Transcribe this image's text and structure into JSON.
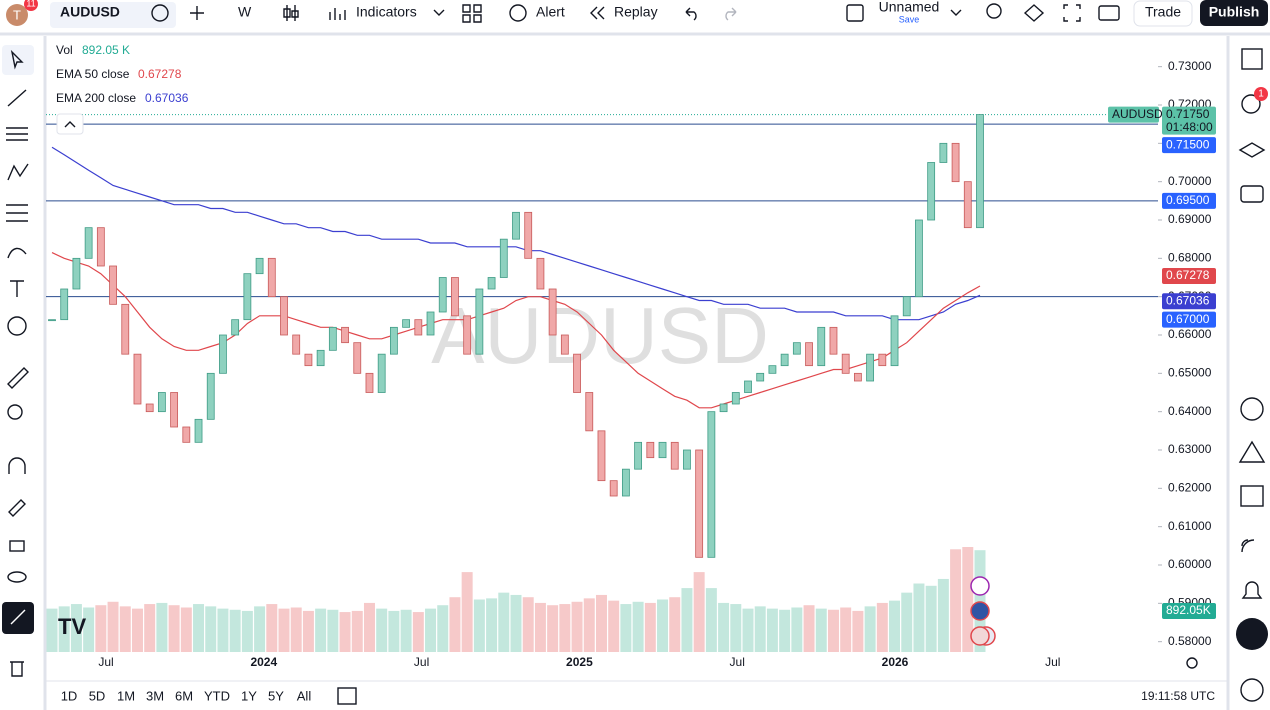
{
  "toolbar": {
    "badge": "11",
    "symbol": "AUDUSD",
    "interval": "W",
    "indicators": "Indicators",
    "alert": "Alert",
    "replay": "Replay",
    "layout_name": "Unnamed",
    "layout_save": "Save",
    "trade": "Trade",
    "publish": "Publish"
  },
  "legend": {
    "vol_label": "Vol",
    "vol_value": "892.05 K",
    "ema50_label": "EMA 50 close",
    "ema50_value": "0.67278",
    "ema200_label": "EMA 200 close",
    "ema200_value": "0.67036"
  },
  "watermark": "AUDUSD",
  "chart": {
    "type": "candlestick",
    "closes": [
      0.664,
      0.672,
      0.68,
      0.688,
      0.678,
      0.668,
      0.655,
      0.642,
      0.64,
      0.645,
      0.636,
      0.632,
      0.638,
      0.65,
      0.66,
      0.664,
      0.676,
      0.68,
      0.67,
      0.66,
      0.655,
      0.652,
      0.656,
      0.662,
      0.658,
      0.65,
      0.645,
      0.655,
      0.662,
      0.664,
      0.66,
      0.666,
      0.675,
      0.665,
      0.655,
      0.672,
      0.675,
      0.685,
      0.692,
      0.68,
      0.672,
      0.66,
      0.655,
      0.645,
      0.635,
      0.622,
      0.618,
      0.625,
      0.632,
      0.628,
      0.632,
      0.625,
      0.63,
      0.602,
      0.64,
      0.642,
      0.645,
      0.648,
      0.65,
      0.652,
      0.655,
      0.658,
      0.652,
      0.662,
      0.655,
      0.65,
      0.648,
      0.655,
      0.652,
      0.665,
      0.67,
      0.69,
      0.705,
      0.71,
      0.7,
      0.688,
      0.7175
    ],
    "volumes": [
      380,
      400,
      420,
      390,
      410,
      440,
      400,
      380,
      420,
      430,
      410,
      390,
      420,
      400,
      380,
      370,
      360,
      400,
      420,
      380,
      390,
      360,
      380,
      370,
      350,
      360,
      430,
      380,
      360,
      370,
      350,
      380,
      410,
      480,
      700,
      460,
      470,
      520,
      500,
      480,
      430,
      410,
      420,
      440,
      470,
      500,
      450,
      420,
      440,
      430,
      460,
      480,
      560,
      700,
      560,
      430,
      420,
      380,
      400,
      380,
      370,
      390,
      410,
      380,
      370,
      390,
      360,
      400,
      430,
      450,
      520,
      600,
      580,
      640,
      900,
      920,
      892.05
    ],
    "ema50": [
      0.6815,
      0.68,
      0.679,
      0.678,
      0.676,
      0.673,
      0.67,
      0.666,
      0.662,
      0.659,
      0.657,
      0.656,
      0.656,
      0.657,
      0.658,
      0.66,
      0.663,
      0.665,
      0.665,
      0.665,
      0.664,
      0.663,
      0.662,
      0.662,
      0.661,
      0.66,
      0.659,
      0.659,
      0.66,
      0.661,
      0.662,
      0.663,
      0.664,
      0.664,
      0.664,
      0.665,
      0.666,
      0.667,
      0.669,
      0.67,
      0.67,
      0.669,
      0.668,
      0.666,
      0.663,
      0.66,
      0.656,
      0.653,
      0.65,
      0.648,
      0.646,
      0.644,
      0.643,
      0.641,
      0.641,
      0.642,
      0.643,
      0.644,
      0.645,
      0.646,
      0.647,
      0.648,
      0.649,
      0.65,
      0.651,
      0.651,
      0.652,
      0.653,
      0.654,
      0.656,
      0.658,
      0.661,
      0.664,
      0.667,
      0.669,
      0.671,
      0.67278
    ],
    "ema200": [
      0.709,
      0.707,
      0.705,
      0.703,
      0.701,
      0.699,
      0.698,
      0.697,
      0.696,
      0.695,
      0.694,
      0.694,
      0.694,
      0.693,
      0.693,
      0.692,
      0.692,
      0.691,
      0.69,
      0.689,
      0.689,
      0.688,
      0.688,
      0.687,
      0.687,
      0.686,
      0.686,
      0.685,
      0.685,
      0.685,
      0.685,
      0.684,
      0.684,
      0.684,
      0.683,
      0.683,
      0.683,
      0.683,
      0.683,
      0.682,
      0.682,
      0.681,
      0.68,
      0.679,
      0.678,
      0.677,
      0.676,
      0.675,
      0.674,
      0.673,
      0.672,
      0.671,
      0.67,
      0.669,
      0.669,
      0.668,
      0.668,
      0.668,
      0.667,
      0.667,
      0.667,
      0.666,
      0.666,
      0.666,
      0.666,
      0.665,
      0.665,
      0.665,
      0.665,
      0.664,
      0.664,
      0.664,
      0.665,
      0.666,
      0.668,
      0.669,
      0.67036
    ],
    "volume_label": {
      "value": 892.05,
      "label": "892.05K"
    },
    "ylim": [
      0.57,
      0.738
    ],
    "yticks": [
      {
        "value": 0.73,
        "label": "0.73000"
      },
      {
        "value": 0.72,
        "label": "0.72000"
      },
      {
        "value": 0.71,
        "label": "0.71000"
      },
      {
        "value": 0.7,
        "label": "0.70000"
      },
      {
        "value": 0.69,
        "label": "0.69000"
      },
      {
        "value": 0.68,
        "label": "0.68000"
      },
      {
        "value": 0.67,
        "label": "0.67000"
      },
      {
        "value": 0.66,
        "label": "0.66000"
      },
      {
        "value": 0.65,
        "label": "0.65000"
      },
      {
        "value": 0.64,
        "label": "0.64000"
      },
      {
        "value": 0.63,
        "label": "0.63000"
      },
      {
        "value": 0.62,
        "label": "0.62000"
      },
      {
        "value": 0.61,
        "label": "0.61000"
      },
      {
        "value": 0.6,
        "label": "0.60000"
      },
      {
        "value": 0.59,
        "label": "0.59000"
      },
      {
        "value": 0.58,
        "label": "0.58000"
      }
    ],
    "price_lines": [
      {
        "value": 0.715,
        "label": "0.71500"
      },
      {
        "value": 0.695,
        "label": "0.69500"
      },
      {
        "value": 0.67,
        "label": "0.67000"
      }
    ],
    "last_price": {
      "symbol": "AUDUSD",
      "value": 0.7175,
      "label": "0.71750",
      "countdown": "01:48:00"
    },
    "ema50_tag": {
      "value": 0.67278,
      "label": "0.67278"
    },
    "ema200_tag": {
      "value": 0.67036,
      "label": "0.67036"
    },
    "xlabels": [
      "Jul",
      "2024",
      "Jul",
      "2025",
      "Jul",
      "2026",
      "Jul"
    ],
    "colors": {
      "up": "#8ed1bf",
      "up_edge": "#3f9c86",
      "down": "#f0a8a8",
      "down_edge": "#c85a5a",
      "vol_up": "#c3e7dd",
      "vol_down": "#f6c9c9",
      "ema50": "#e0474c",
      "ema200": "#3b3fd0",
      "line": "#2a4c8f"
    }
  },
  "timeframes": [
    "1D",
    "5D",
    "1M",
    "3M",
    "6M",
    "YTD",
    "1Y",
    "5Y",
    "All"
  ],
  "clock": "19:11:58 UTC",
  "alerts_badge": "1"
}
